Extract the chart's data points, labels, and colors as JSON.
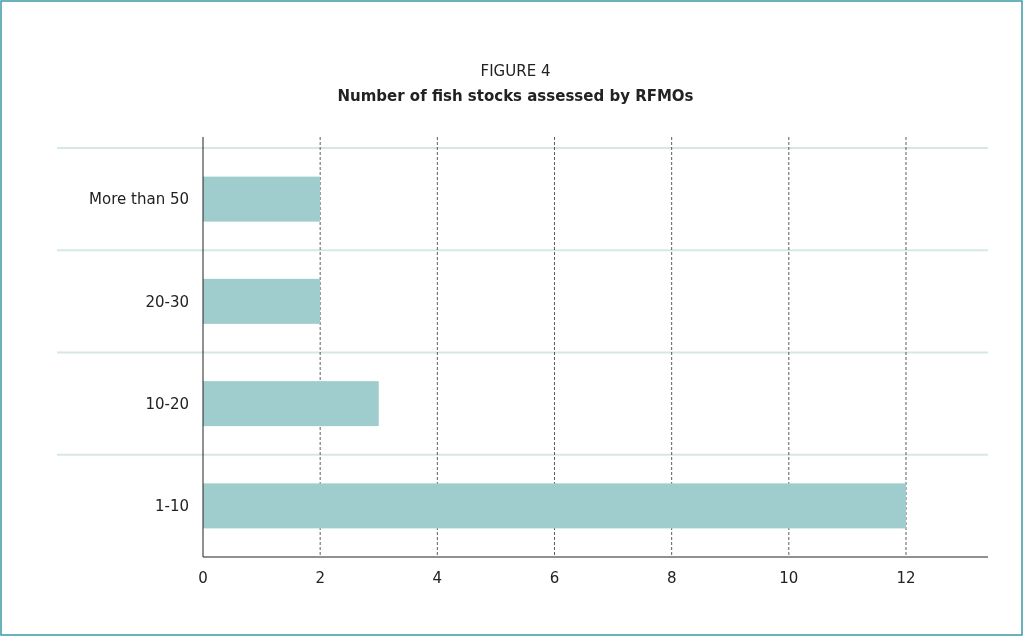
{
  "chart_data": {
    "type": "bar",
    "orientation": "horizontal",
    "title": "FIGURE 4",
    "subtitle": "Number of fish stocks assessed by RFMOs",
    "categories": [
      "More than 50",
      "20-30",
      "10-20",
      "1-10"
    ],
    "values": [
      2,
      2,
      3,
      12
    ],
    "color": "#9fcdcd",
    "xlim": [
      0,
      13.4
    ],
    "xticks": [
      0,
      2,
      4,
      6,
      8,
      10,
      12
    ],
    "grid": "x"
  }
}
